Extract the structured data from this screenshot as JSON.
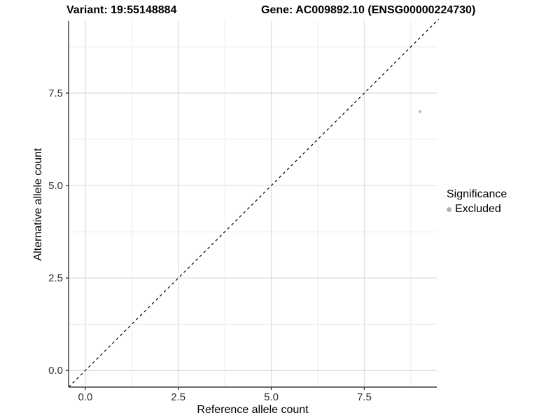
{
  "chart_data": {
    "type": "scatter",
    "title_left": "Variant: 19:55148884",
    "title_right": "Gene: AC009892.10 (ENSG00000224730)",
    "xlabel": "Reference allele count",
    "ylabel": "Alternative allele count",
    "xlim": [
      -0.45,
      9.45
    ],
    "ylim": [
      -0.45,
      9.45
    ],
    "xticks": [
      0,
      2.5,
      5,
      7.5
    ],
    "xtick_labels": [
      "0.0",
      "2.5",
      "5.0",
      "7.5"
    ],
    "yticks": [
      0,
      2.5,
      5,
      7.5
    ],
    "ytick_labels": [
      "0.0",
      "2.5",
      "5.0",
      "7.5"
    ],
    "minor_breaks": [
      1.25,
      3.75,
      6.25,
      8.75
    ],
    "grid": "major+minor",
    "reference_line": {
      "type": "identity y=x",
      "style": "dashed",
      "color": "#000000"
    },
    "series": [
      {
        "name": "Excluded",
        "color": "#c5c5c5",
        "points": [
          {
            "x": 9,
            "y": 7
          }
        ]
      }
    ],
    "legend": {
      "title": "Significance",
      "position": "right",
      "entries": [
        {
          "label": "Excluded",
          "color": "#b4b4b4"
        }
      ]
    }
  },
  "colors": {
    "background": "#ffffff",
    "grid_major": "#dcdcdc",
    "grid_minor": "#ebebeb",
    "axis_line": "#3a3a3a",
    "tick_mark": "#3a3a3a",
    "point": "#c5c5c5",
    "legend_dot": "#b4b4b4",
    "ref_line": "#000000"
  }
}
